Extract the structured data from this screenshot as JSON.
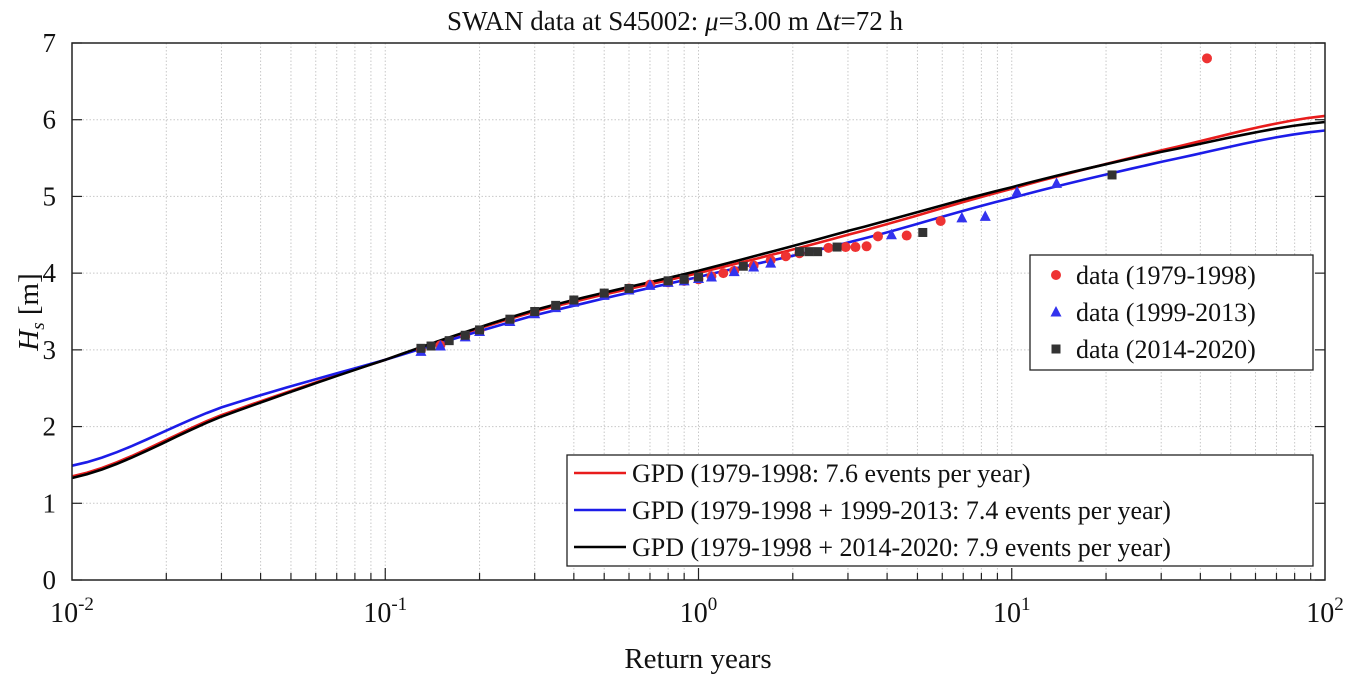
{
  "chart_data": {
    "type": "scatter",
    "title": "SWAN data at S45002: μ=3.00 m Δt=72 h",
    "title_parts": {
      "prefix": "SWAN data at S45002: ",
      "mu_symbol": "μ",
      "mu_value": "=3.00 m ",
      "dt_symbol": "Δ",
      "t_symbol": "t",
      "dt_value": "=72 h"
    },
    "xlabel": "Return years",
    "ylabel": {
      "symbol": "H",
      "subscript": "s",
      "unit": " [m]"
    },
    "xscale": "log",
    "xlim": [
      0.01,
      100
    ],
    "ylim": [
      0,
      7
    ],
    "grid": true,
    "xticks": [
      {
        "base": "10",
        "exp": "-2",
        "value": 0.01
      },
      {
        "base": "10",
        "exp": "-1",
        "value": 0.1
      },
      {
        "base": "10",
        "exp": "0",
        "value": 1
      },
      {
        "base": "10",
        "exp": "1",
        "value": 10
      },
      {
        "base": "10",
        "exp": "2",
        "value": 100
      }
    ],
    "yticks": [
      "0",
      "1",
      "2",
      "3",
      "4",
      "5",
      "6",
      "7"
    ],
    "scatter_series": [
      {
        "name": "data (1979-1998)",
        "color": "#ee3333",
        "marker": "circle",
        "points": [
          [
            0.13,
            3.0
          ],
          [
            0.15,
            3.06
          ],
          [
            0.18,
            3.18
          ],
          [
            0.2,
            3.25
          ],
          [
            0.25,
            3.38
          ],
          [
            0.3,
            3.48
          ],
          [
            0.35,
            3.56
          ],
          [
            0.4,
            3.63
          ],
          [
            0.5,
            3.72
          ],
          [
            0.6,
            3.8
          ],
          [
            0.7,
            3.85
          ],
          [
            0.8,
            3.88
          ],
          [
            0.9,
            3.9
          ],
          [
            1.0,
            3.92
          ],
          [
            1.1,
            3.96
          ],
          [
            1.2,
            4.0
          ],
          [
            1.3,
            4.03
          ],
          [
            1.5,
            4.1
          ],
          [
            1.7,
            4.17
          ],
          [
            1.9,
            4.22
          ],
          [
            2.1,
            4.26
          ],
          [
            2.6,
            4.33
          ],
          [
            2.95,
            4.34
          ],
          [
            3.17,
            4.34
          ],
          [
            3.44,
            4.35
          ],
          [
            3.74,
            4.48
          ],
          [
            4.62,
            4.49
          ],
          [
            5.93,
            4.68
          ],
          [
            42,
            6.8
          ]
        ]
      },
      {
        "name": "data (1999-2013)",
        "color": "#3333ee",
        "marker": "triangle",
        "points": [
          [
            0.13,
            2.98
          ],
          [
            0.15,
            3.05
          ],
          [
            0.18,
            3.17
          ],
          [
            0.2,
            3.24
          ],
          [
            0.25,
            3.37
          ],
          [
            0.3,
            3.47
          ],
          [
            0.35,
            3.55
          ],
          [
            0.4,
            3.62
          ],
          [
            0.5,
            3.71
          ],
          [
            0.6,
            3.78
          ],
          [
            0.7,
            3.84
          ],
          [
            0.8,
            3.88
          ],
          [
            0.9,
            3.9
          ],
          [
            1.0,
            3.93
          ],
          [
            1.1,
            3.95
          ],
          [
            1.3,
            4.02
          ],
          [
            1.5,
            4.08
          ],
          [
            1.7,
            4.13
          ],
          [
            4.13,
            4.5
          ],
          [
            6.93,
            4.72
          ],
          [
            8.23,
            4.74
          ],
          [
            10.4,
            5.06
          ],
          [
            13.9,
            5.17
          ]
        ]
      },
      {
        "name": "data (2014-2020)",
        "color": "#333333",
        "marker": "square",
        "points": [
          [
            0.13,
            3.02
          ],
          [
            0.14,
            3.05
          ],
          [
            0.16,
            3.12
          ],
          [
            0.18,
            3.19
          ],
          [
            0.2,
            3.26
          ],
          [
            0.25,
            3.4
          ],
          [
            0.3,
            3.5
          ],
          [
            0.35,
            3.58
          ],
          [
            0.4,
            3.65
          ],
          [
            0.5,
            3.74
          ],
          [
            0.6,
            3.8
          ],
          [
            0.8,
            3.9
          ],
          [
            0.9,
            3.92
          ],
          [
            1.0,
            3.95
          ],
          [
            1.39,
            4.09
          ],
          [
            2.1,
            4.28
          ],
          [
            2.25,
            4.28
          ],
          [
            2.4,
            4.28
          ],
          [
            2.77,
            4.34
          ],
          [
            5.2,
            4.53
          ],
          [
            20.9,
            5.28
          ]
        ]
      }
    ],
    "line_series": [
      {
        "name": "GPD (1979-1998: 7.6 events per year)",
        "color": "#e81c1c",
        "x": [
          0.01,
          0.03,
          0.1,
          0.3,
          1,
          3,
          10,
          30,
          100
        ],
        "y": [
          1.35,
          2.15,
          2.87,
          3.5,
          4.0,
          4.5,
          5.1,
          5.6,
          6.05
        ]
      },
      {
        "name": "GPD (1979-1998 + 1999-2013: 7.4 events per year)",
        "color": "#1c1ce8",
        "x": [
          0.01,
          0.03,
          0.1,
          0.3,
          1,
          3,
          10,
          30,
          100
        ],
        "y": [
          1.49,
          2.25,
          2.87,
          3.45,
          3.95,
          4.4,
          4.98,
          5.45,
          5.86
        ]
      },
      {
        "name": "GPD (1979-1998 + 2014-2020: 7.9 events per year)",
        "color": "#000000",
        "x": [
          0.01,
          0.03,
          0.1,
          0.3,
          1,
          3,
          10,
          30,
          100
        ],
        "y": [
          1.33,
          2.13,
          2.87,
          3.52,
          4.03,
          4.55,
          5.12,
          5.58,
          5.97
        ]
      }
    ],
    "legends": [
      "right (scatter)",
      "bottom-right (lines)"
    ]
  }
}
